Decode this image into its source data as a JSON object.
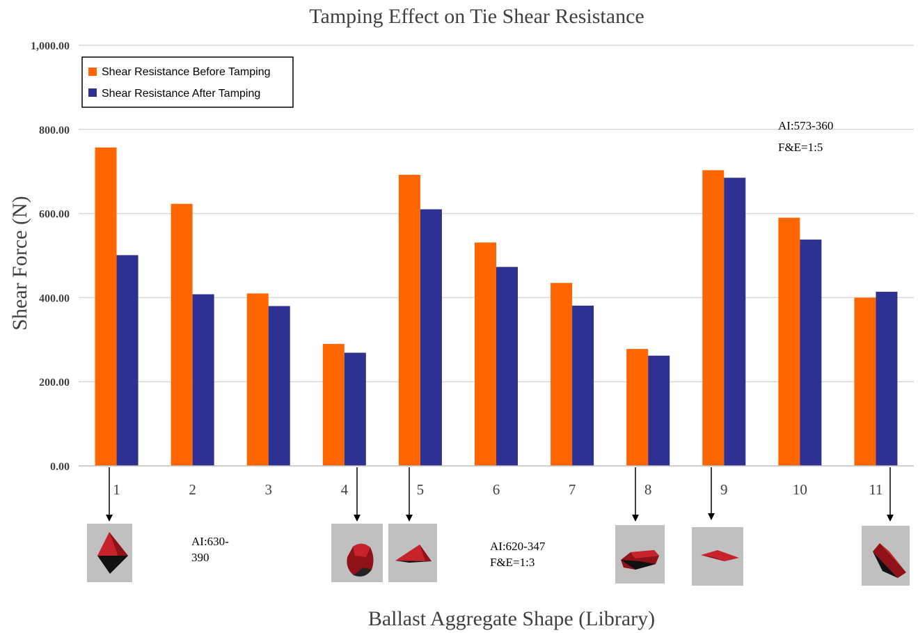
{
  "chart_data": {
    "type": "bar",
    "title": "Tamping Effect on Tie Shear Resistance",
    "ylabel": "Shear Force (N)",
    "xlabel": "Ballast Aggregate Shape (Library)",
    "ylim": [
      0,
      1000
    ],
    "y_ticks": [
      "0.00",
      "200.00",
      "400.00",
      "600.00",
      "800.00",
      "1,000.00"
    ],
    "grid": true,
    "legend_placement": "top-left",
    "categories": [
      "1",
      "2",
      "3",
      "4",
      "5",
      "6",
      "7",
      "8",
      "9",
      "10",
      "11"
    ],
    "series": [
      {
        "name": "Shear Resistance Before Tamping",
        "color": "#ff6600",
        "values": [
          757,
          623,
          410,
          290,
          692,
          531,
          435,
          278,
          703,
          590,
          400
        ]
      },
      {
        "name": "Shear Resistance After Tamping",
        "color": "#2e3192",
        "values": [
          501,
          408,
          380,
          269,
          610,
          473,
          381,
          262,
          685,
          538,
          414
        ]
      }
    ],
    "annotations": [
      {
        "lines": [
          "AI:573-360",
          "F&E=1:5"
        ]
      },
      {
        "lines": [
          "AI:630-",
          "390"
        ]
      },
      {
        "lines": [
          "AI:620-347",
          "F&E=1:3"
        ]
      }
    ],
    "shape_images": [
      {
        "category": "1",
        "shape": "octahedron"
      },
      {
        "category": "4",
        "shape": "rounded-block"
      },
      {
        "category": "5",
        "shape": "flat-wedge"
      },
      {
        "category": "8",
        "shape": "elongated-slab"
      },
      {
        "category": "9",
        "shape": "thin-flake"
      },
      {
        "category": "11",
        "shape": "tilted-prism"
      }
    ]
  }
}
